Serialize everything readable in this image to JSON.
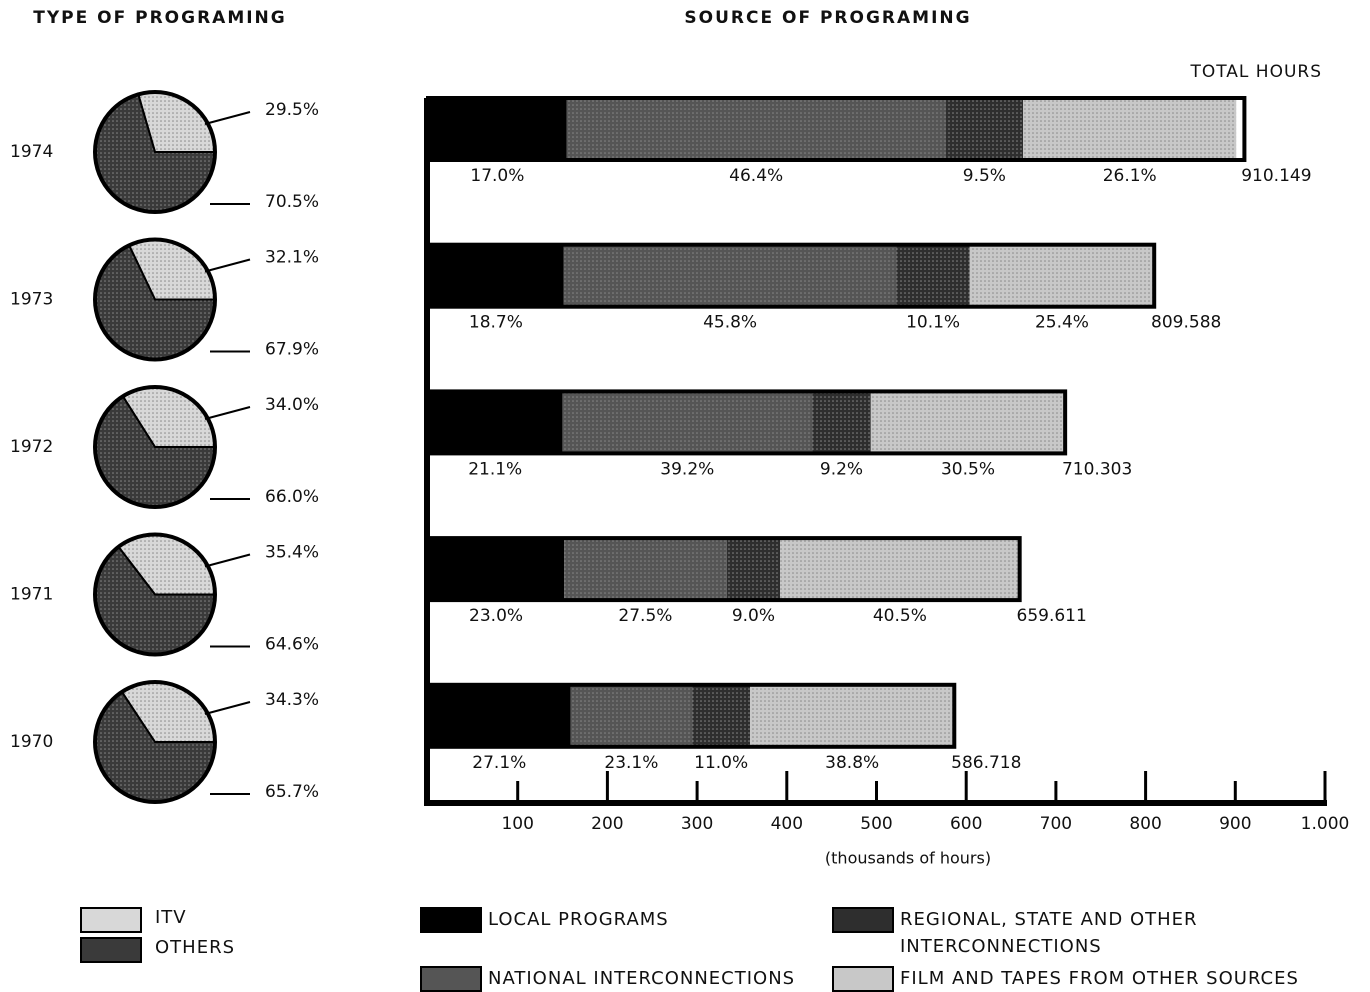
{
  "chart_data": [
    {
      "type": "pie",
      "title": "TYPE OF PROGRAMING",
      "categories": [
        "1974",
        "1973",
        "1972",
        "1971",
        "1970"
      ],
      "series": [
        {
          "name": "ITV",
          "color": "#d8d8d8",
          "values": [
            29.5,
            32.1,
            34.0,
            35.4,
            34.3
          ],
          "value_labels": [
            "29.5%",
            "32.1%",
            "34.0%",
            "35.4%",
            "34.3%"
          ]
        },
        {
          "name": "OTHERS",
          "color": "#3a3a3a",
          "values": [
            70.5,
            67.9,
            66.0,
            64.6,
            65.7
          ],
          "value_labels": [
            "70.5%",
            "67.9%",
            "66.0%",
            "64.6%",
            "65.7%"
          ]
        }
      ]
    },
    {
      "type": "bar",
      "stacked": true,
      "orientation": "horizontal",
      "title": "SOURCE OF PROGRAMING",
      "total_label": "TOTAL HOURS",
      "x_label": "(thousands of hours)",
      "totals": {
        "values": [
          910.149,
          809.588,
          710.303,
          659.611,
          586.718
        ]
      },
      "series": [
        {
          "name": "LOCAL PROGRAMS",
          "color": "#000000",
          "values": [
            17.0,
            18.7,
            21.1,
            23.0,
            27.1
          ],
          "value_labels": [
            "17.0%",
            "18.7%",
            "21.1%",
            "23.0%",
            "27.1%"
          ]
        },
        {
          "name": "NATIONAL INTERCONNECTIONS",
          "color": "#555555",
          "values": [
            46.4,
            45.8,
            39.2,
            27.5,
            23.1
          ],
          "value_labels": [
            "46.4%",
            "45.8%",
            "39.2%",
            "27.5%",
            "23.1%"
          ]
        },
        {
          "name": "REGIONAL, STATE AND OTHER INTERCONNECTIONS",
          "color": "#2e2e2e",
          "values": [
            9.5,
            10.1,
            9.2,
            9.0,
            11.0
          ],
          "value_labels": [
            "9.5%",
            "10.1%",
            "9.2%",
            "9.0%",
            "11.0%"
          ]
        },
        {
          "name": "FILM AND TAPES FROM OTHER SOURCES",
          "color": "#c8c8c8",
          "values": [
            26.1,
            25.4,
            30.5,
            40.5,
            38.8
          ],
          "value_labels": [
            "26.1%",
            "25.4%",
            "30.5%",
            "40.5%",
            "38.8%"
          ]
        }
      ],
      "xlim": [
        0,
        1000
      ],
      "xticks": [
        100,
        200,
        300,
        400,
        500,
        600,
        700,
        800,
        900,
        {
          "value": 1000,
          "label": "1.000"
        }
      ]
    }
  ]
}
